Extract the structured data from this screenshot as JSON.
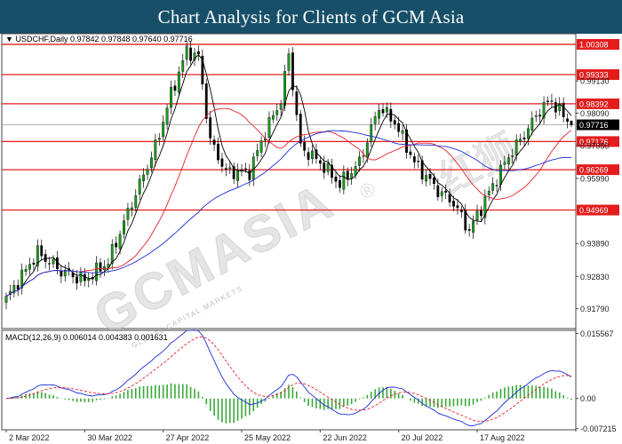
{
  "header": {
    "title": "Chart Analysis for Clients of GCM Asia"
  },
  "watermark": {
    "brand": "GCMASIA",
    "trademark": "®",
    "chinese": "红狮",
    "subtitle": "GLOBAL CAPITAL MARKETS"
  },
  "colors": {
    "header_bg": "#174f68",
    "bull_candle": "#1aa11a",
    "bear_candle": "#000000",
    "ma_fast": "#000000",
    "ma_mid": "#e8202c",
    "ma_slow": "#1a2fd8",
    "level_line": "#e31c1c",
    "macd_line": "#1a2fd8",
    "signal_line": "#e8202c",
    "histogram": "#3aa83a"
  },
  "chart_data": [
    {
      "type": "candlestick",
      "symbol": "USDCHF,Daily",
      "ohlc_label": "0.97842 0.97848 0.97640 0.97716",
      "ohlc": {
        "open": 0.97842,
        "high": 0.97848,
        "low": 0.9764,
        "close": 0.97716
      },
      "ylim": [
        0.9115,
        1.0065
      ],
      "y_ticks": [
        "0.99130",
        "0.98090",
        "0.97050",
        "0.95990",
        "0.93890",
        "0.92830",
        "0.91790"
      ],
      "y_tick_values": [
        0.9913,
        0.9809,
        0.9705,
        0.9599,
        0.9389,
        0.9283,
        0.9179
      ],
      "x_ticks": [
        "2 Mar 2022",
        "30 Mar 2022",
        "27 Apr 2022",
        "25 May 2022",
        "22 Jun 2022",
        "20 Jul 2022",
        "17 Aug 2022"
      ],
      "x_tick_index": [
        0,
        20,
        40,
        60,
        80,
        100,
        120
      ],
      "levels": [
        "1.00308",
        "0.99333",
        "0.98392",
        "0.97176",
        "0.96269",
        "0.94969"
      ],
      "level_values": [
        1.00308,
        0.99333,
        0.98392,
        0.97176,
        0.96269,
        0.94969
      ],
      "current_price": "0.97716",
      "current_value": 0.97716,
      "n_bars": 145,
      "close_anchors": [
        [
          0,
          0.921
        ],
        [
          8,
          0.936
        ],
        [
          14,
          0.93
        ],
        [
          20,
          0.927
        ],
        [
          26,
          0.933
        ],
        [
          32,
          0.952
        ],
        [
          38,
          0.97
        ],
        [
          42,
          0.987
        ],
        [
          46,
          1.001
        ],
        [
          49,
          0.999
        ],
        [
          52,
          0.972
        ],
        [
          56,
          0.962
        ],
        [
          62,
          0.962
        ],
        [
          66,
          0.975
        ],
        [
          70,
          0.985
        ],
        [
          72,
          1.0
        ],
        [
          75,
          0.97
        ],
        [
          80,
          0.965
        ],
        [
          85,
          0.958
        ],
        [
          90,
          0.965
        ],
        [
          95,
          0.983
        ],
        [
          99,
          0.978
        ],
        [
          104,
          0.965
        ],
        [
          110,
          0.956
        ],
        [
          114,
          0.952
        ],
        [
          118,
          0.943
        ],
        [
          122,
          0.953
        ],
        [
          128,
          0.967
        ],
        [
          132,
          0.974
        ],
        [
          136,
          0.982
        ],
        [
          139,
          0.985
        ],
        [
          142,
          0.98
        ],
        [
          144,
          0.9772
        ]
      ],
      "sma_fast_period": 5,
      "sma_mid_period": 20,
      "sma_slow_period": 50
    },
    {
      "type": "macd",
      "label": "MACD(12,26,9) 0.006014 0.004383 0.001631",
      "ylim": [
        -0.0075,
        0.0163
      ],
      "y_ticks": [
        "0.015567",
        "0.00",
        "-0.007215"
      ],
      "y_tick_values": [
        0.015567,
        0.0,
        -0.007215
      ],
      "hist_scale": 0.55
    }
  ]
}
